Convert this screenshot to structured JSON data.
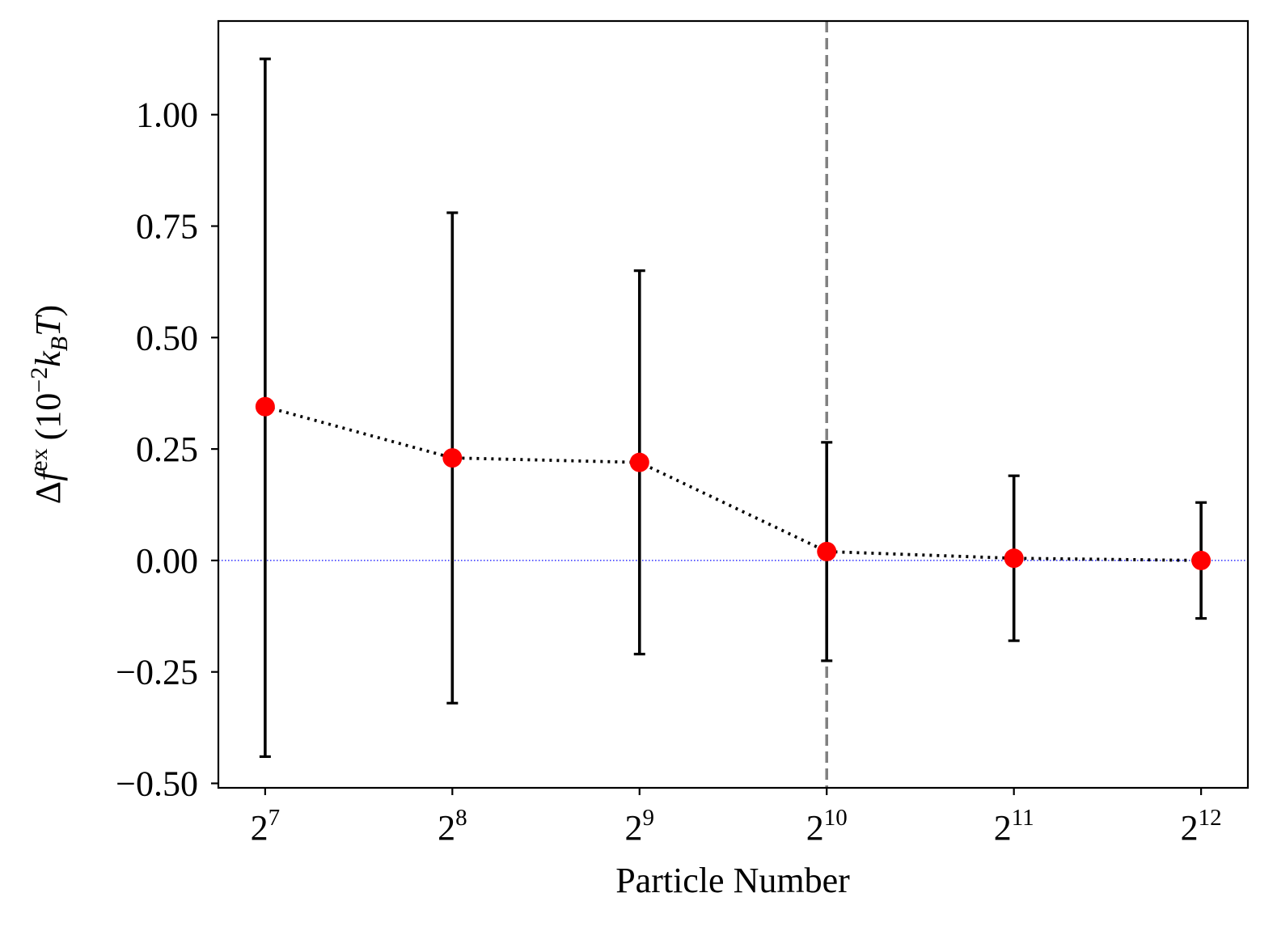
{
  "chart_data": {
    "type": "scatter",
    "title": "",
    "xlabel": "Particle Number",
    "ylabel": {
      "delta": "Δ",
      "f": "f",
      "f_sup": "ex",
      "open": "(10",
      "pow": "−2",
      "k": "k",
      "k_sub": "B",
      "T": "T",
      "close": ")"
    },
    "x_scale": "log2",
    "x_ticks": [
      {
        "base": "2",
        "exp": "7",
        "value": 128
      },
      {
        "base": "2",
        "exp": "8",
        "value": 256
      },
      {
        "base": "2",
        "exp": "9",
        "value": 512
      },
      {
        "base": "2",
        "exp": "10",
        "value": 1024
      },
      {
        "base": "2",
        "exp": "11",
        "value": 2048
      },
      {
        "base": "2",
        "exp": "12",
        "value": 4096
      }
    ],
    "y_ticks": [
      {
        "value": 1.0,
        "label": "1.00"
      },
      {
        "value": 0.75,
        "label": "0.75"
      },
      {
        "value": 0.5,
        "label": "0.50"
      },
      {
        "value": 0.25,
        "label": "0.25"
      },
      {
        "value": 0.0,
        "label": "0.00"
      },
      {
        "value": -0.25,
        "label": "−0.25"
      },
      {
        "value": -0.5,
        "label": "−0.50"
      }
    ],
    "xlim_log2": [
      6.75,
      12.25
    ],
    "ylim": [
      -0.51,
      1.21
    ],
    "grid": false,
    "series": [
      {
        "name": "Δf_ex",
        "marker": "circle",
        "marker_color": "#ff0000",
        "line_style": "dotted",
        "line_color": "#000000",
        "errorbar_color": "#000000",
        "x": [
          128,
          256,
          512,
          1024,
          2048,
          4096
        ],
        "y": [
          0.345,
          0.23,
          0.22,
          0.02,
          0.005,
          0.0
        ],
        "y_lower": [
          -0.44,
          -0.32,
          -0.21,
          -0.225,
          -0.18,
          -0.13
        ],
        "y_upper": [
          1.125,
          0.78,
          0.65,
          0.265,
          0.19,
          0.13
        ]
      }
    ],
    "reference_lines": [
      {
        "orientation": "horizontal",
        "value": 0.0,
        "color": "#0000ff",
        "style": "dotted"
      },
      {
        "orientation": "vertical",
        "value": 1024,
        "color": "#808080",
        "style": "dashed"
      }
    ]
  }
}
